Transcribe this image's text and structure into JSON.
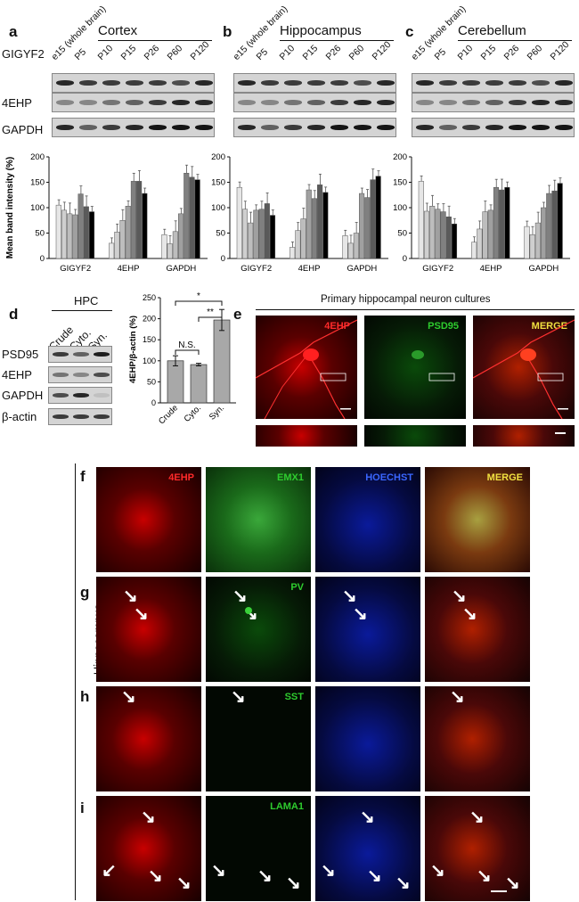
{
  "panel_letters": {
    "a": "a",
    "b": "b",
    "c": "c",
    "d": "d",
    "e": "e",
    "f": "f",
    "g": "g",
    "h": "h",
    "i": "i"
  },
  "blot_rows": [
    "GIGYF2",
    "4EHP",
    "GAPDH"
  ],
  "region_titles": [
    "Cortex",
    "Hippocampus",
    "Cerebellum"
  ],
  "lanes": [
    "e15 (whole brain)",
    "P5",
    "P10",
    "P15",
    "P26",
    "P60",
    "P120"
  ],
  "chart_ylabel": "Mean band intensity (%)",
  "chart_ticks": [
    "0",
    "50",
    "100",
    "150",
    "200"
  ],
  "chart_data": [
    {
      "type": "bar",
      "title": "",
      "categories": [
        "GIGYF2",
        "4EHP",
        "GAPDH"
      ],
      "ylabel": "Mean band intensity (%)",
      "ylim": [
        0,
        200
      ],
      "groups": [
        {
          "name": "GIGYF2",
          "values": [
            105,
            95,
            88,
            86,
            127,
            102,
            92
          ]
        },
        {
          "name": "4EHP",
          "values": [
            30,
            52,
            75,
            103,
            152,
            152,
            128
          ]
        },
        {
          "name": "GAPDH",
          "values": [
            47,
            29,
            53,
            88,
            168,
            160,
            155
          ]
        }
      ]
    },
    {
      "type": "bar",
      "title": "",
      "categories": [
        "GIGYF2",
        "4EHP",
        "GAPDH"
      ],
      "ylabel": "",
      "ylim": [
        0,
        200
      ],
      "groups": [
        {
          "name": "GIGYF2",
          "values": [
            140,
            97,
            70,
            95,
            97,
            108,
            85
          ]
        },
        {
          "name": "4EHP",
          "values": [
            22,
            55,
            78,
            135,
            118,
            145,
            130
          ]
        },
        {
          "name": "GAPDH",
          "values": [
            45,
            30,
            50,
            128,
            120,
            155,
            162
          ]
        }
      ]
    },
    {
      "type": "bar",
      "title": "",
      "categories": [
        "GIGYF2",
        "4EHP",
        "GAPDH"
      ],
      "ylabel": "",
      "ylim": [
        0,
        200
      ],
      "groups": [
        {
          "name": "GIGYF2",
          "values": [
            152,
            93,
            103,
            97,
            92,
            82,
            68
          ]
        },
        {
          "name": "4EHP",
          "values": [
            32,
            58,
            92,
            95,
            140,
            135,
            140
          ]
        },
        {
          "name": "GAPDH",
          "values": [
            63,
            47,
            70,
            100,
            128,
            133,
            148
          ]
        }
      ]
    },
    {
      "type": "bar",
      "title": "",
      "categories": [
        "Crude",
        "Cyto.",
        "Syn."
      ],
      "values": [
        100,
        91,
        197
      ],
      "ylabel": "4EHP/β-actin (%)",
      "ylim": [
        0,
        250
      ],
      "significance": [
        {
          "label": "N.S.",
          "from": "Crude",
          "to": "Cyto."
        },
        {
          "label": "*",
          "from": "Crude",
          "to": "Syn."
        },
        {
          "label": "**",
          "from": "Cyto.",
          "to": "Syn."
        }
      ]
    }
  ],
  "bar_colors": [
    "#e6e6e6",
    "#cfcfcf",
    "#bdbdbd",
    "#a0a0a0",
    "#808080",
    "#5a5a5a",
    "#000000"
  ],
  "d": {
    "header": "HPC",
    "lanes": [
      "Crude",
      "Cyto.",
      "Syn."
    ],
    "rows": [
      "PSD95",
      "4EHP",
      "GAPDH",
      "β-actin"
    ],
    "ylabel": "4EHP/β-actin (%)",
    "ticks": [
      "0",
      "50",
      "100",
      "150",
      "200",
      "250"
    ]
  },
  "e": {
    "title": "Primary hippocampal neuron cultures",
    "labels": [
      "4EHP",
      "PSD95",
      "MERGE"
    ]
  },
  "hippo_label": "Hippocampus",
  "f_labels": [
    "4EHP",
    "EMX1",
    "HOECHST",
    "MERGE"
  ],
  "g_label": "PV",
  "h_label": "SST",
  "i_label": "LAMA1",
  "colors": {
    "red": "#ff2a2a",
    "green": "#2ecc2e",
    "blue": "#3a66ff",
    "yellow": "#f0e040"
  }
}
